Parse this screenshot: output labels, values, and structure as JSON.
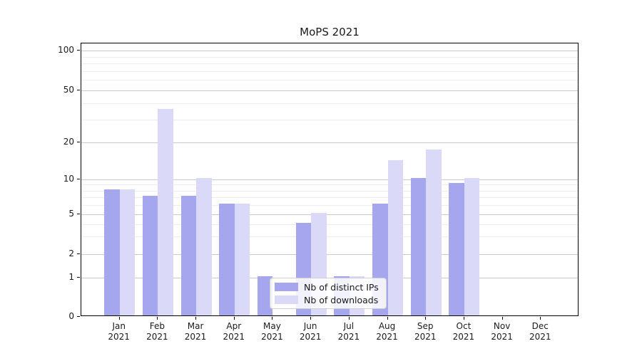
{
  "title": "MoPS 2021",
  "chart_data": {
    "type": "bar",
    "categories": [
      "Jan",
      "Feb",
      "Mar",
      "Apr",
      "May",
      "Jun",
      "Jul",
      "Aug",
      "Sep",
      "Oct",
      "Nov",
      "Dec"
    ],
    "category_year": "2021",
    "series": [
      {
        "name": "Nb of distinct IPs",
        "color": "#a6a6ef",
        "values": [
          8,
          7,
          7,
          6,
          1,
          4,
          1,
          6,
          10,
          9,
          0,
          0
        ]
      },
      {
        "name": "Nb of downloads",
        "color": "#dadaf8",
        "values": [
          8,
          35,
          10,
          6,
          0,
          5,
          1,
          14,
          17,
          10,
          0,
          0
        ]
      }
    ],
    "title": "MoPS 2021",
    "xlabel": "",
    "ylabel": "",
    "y_scale": "symlog",
    "yticks": [
      0,
      1,
      2,
      5,
      10,
      20,
      50,
      100
    ],
    "yticks_minor": [
      3,
      4,
      6,
      7,
      8,
      9,
      30,
      40,
      60,
      70,
      80,
      90
    ],
    "ylim": [
      0,
      110
    ],
    "grid": true,
    "legend_position": "lower center"
  },
  "colors": {
    "bar_distinct_ips": "#a6a6ef",
    "bar_downloads": "#dadaf8",
    "grid_major": "#c9c9c9",
    "grid_minor": "#ededed",
    "spine": "#000000",
    "background": "#ffffff",
    "legend_border": "#cfcfcf"
  }
}
